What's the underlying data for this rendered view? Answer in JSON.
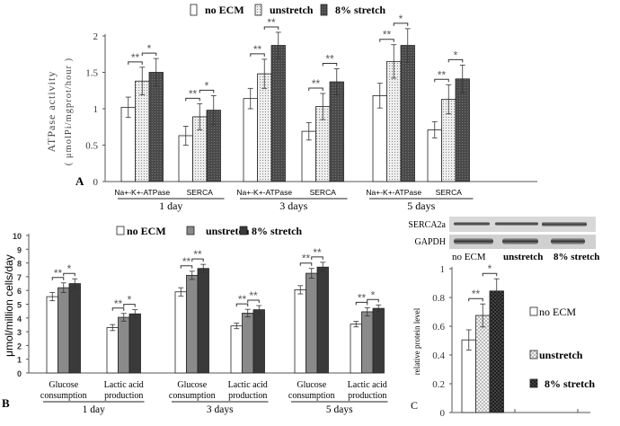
{
  "chart_data": [
    {
      "type": "bar",
      "panel_label": "A",
      "ylabel": [
        "ATPase activity",
        "( μmolPi/mgprot/hour )"
      ],
      "ylim": [
        0,
        2
      ],
      "yticks": [
        "0",
        "0.5",
        "1",
        "1.5",
        "2"
      ],
      "legend": [
        "no ECM",
        "unstretch",
        "8% stretch"
      ],
      "legend_position": "top",
      "categories": [
        "Na+-K+-ATPase",
        "SERCA",
        "Na+-K+-ATPase",
        "SERCA",
        "Na+-K+-ATPase",
        "SERCA"
      ],
      "day_groups": [
        "1 day",
        "3 days",
        "5 days"
      ],
      "series": [
        {
          "name": "no ECM",
          "values": [
            1.02,
            0.63,
            1.14,
            0.69,
            1.18,
            0.71
          ],
          "errors": [
            0.14,
            0.13,
            0.14,
            0.12,
            0.17,
            0.11
          ]
        },
        {
          "name": "unstretch",
          "values": [
            1.38,
            0.89,
            1.48,
            1.03,
            1.65,
            1.13
          ],
          "errors": [
            0.19,
            0.18,
            0.2,
            0.18,
            0.23,
            0.2
          ]
        },
        {
          "name": "8% stretch",
          "values": [
            1.5,
            0.98,
            1.87,
            1.37,
            1.87,
            1.41
          ],
          "errors": [
            0.19,
            0.2,
            0.18,
            0.18,
            0.23,
            0.19
          ]
        }
      ],
      "significance": [
        [
          "**",
          "*"
        ],
        [
          "**",
          "*"
        ],
        [
          "**",
          "**"
        ],
        [
          "**",
          "**"
        ],
        [
          "**",
          "*"
        ],
        [
          "**",
          "*"
        ]
      ]
    },
    {
      "type": "bar",
      "panel_label": "B",
      "ylabel": [
        "μmol/million cells/day"
      ],
      "ylim": [
        0,
        10
      ],
      "yticks": [
        "0",
        "1",
        "2",
        "3",
        "4",
        "5",
        "6",
        "7",
        "8",
        "9",
        "10"
      ],
      "legend": [
        "no ECM",
        "unstretch",
        "8% stretch"
      ],
      "legend_position": "top",
      "categories": [
        [
          "Glucose",
          "consumption"
        ],
        [
          "Lactic acid",
          "production"
        ],
        [
          "Glucose",
          "consumption"
        ],
        [
          "Lactic acid",
          "production"
        ],
        [
          "Glucose",
          "consumption"
        ],
        [
          "Lactic acid",
          "production"
        ]
      ],
      "day_groups": [
        "1  day",
        "3  days",
        "5  days"
      ],
      "series": [
        {
          "name": "no ECM",
          "values": [
            5.55,
            3.3,
            5.9,
            3.42,
            6.05,
            3.55
          ],
          "errors": [
            0.3,
            0.22,
            0.3,
            0.2,
            0.3,
            0.2
          ]
        },
        {
          "name": "unstretch",
          "values": [
            6.2,
            4.05,
            7.1,
            4.35,
            7.25,
            4.45
          ],
          "errors": [
            0.35,
            0.28,
            0.3,
            0.28,
            0.35,
            0.3
          ]
        },
        {
          "name": "8% stretch",
          "values": [
            6.5,
            4.3,
            7.6,
            4.6,
            7.7,
            4.7
          ],
          "errors": [
            0.35,
            0.3,
            0.3,
            0.3,
            0.35,
            0.25
          ]
        }
      ],
      "significance": [
        [
          "**",
          "*"
        ],
        [
          "**",
          "*"
        ],
        [
          "**",
          "**"
        ],
        [
          "**",
          "**"
        ],
        [
          "**",
          "**"
        ],
        [
          "**",
          "*"
        ]
      ]
    },
    {
      "type": "bar",
      "panel_label": "C",
      "ylabel": [
        "relative protein level"
      ],
      "ylim": [
        0,
        1
      ],
      "yticks": [
        "0",
        "0.2",
        "0.4",
        "0.6",
        "0.8",
        "1"
      ],
      "legend": [
        "no ECM",
        "unstretch",
        "8% stretch"
      ],
      "legend_position": "right",
      "blot_rows": [
        "SERCA2a",
        "GAPDH"
      ],
      "blot_lanes": [
        "no ECM",
        "unstretch",
        "8% stretch"
      ],
      "categories": [
        ""
      ],
      "series": [
        {
          "name": "no ECM",
          "values": [
            0.505
          ],
          "errors": [
            0.07
          ]
        },
        {
          "name": "unstretch",
          "values": [
            0.675
          ],
          "errors": [
            0.08
          ]
        },
        {
          "name": "8% stretch",
          "values": [
            0.845
          ],
          "errors": [
            0.085
          ]
        }
      ],
      "significance": [
        [
          "**",
          "*"
        ]
      ]
    }
  ],
  "colors": {
    "axis": "#555555",
    "no_ecm": "#ffffff",
    "unstretch_B": "#8a8a8a",
    "stretch_B": "#3a3a3a",
    "stretch_A": "#4a4a4a",
    "stretch_C": "#222222",
    "dots": "#e6e6e6"
  }
}
